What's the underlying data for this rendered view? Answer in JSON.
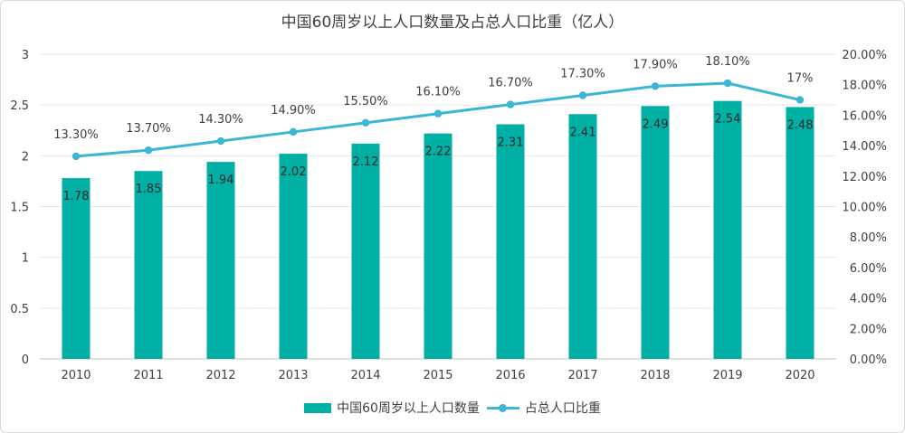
{
  "chart_data": {
    "type": "bar+line",
    "title": "中国60周岁以上人口数量及占总人口比重（亿人）",
    "categories": [
      "2010",
      "2011",
      "2012",
      "2013",
      "2014",
      "2015",
      "2016",
      "2017",
      "2018",
      "2019",
      "2020"
    ],
    "series": [
      {
        "name": "中国60周岁以上人口数量",
        "type": "bar",
        "axis": "left",
        "color": "#00b0a5",
        "values": [
          1.78,
          1.85,
          1.94,
          2.02,
          2.12,
          2.22,
          2.31,
          2.41,
          2.49,
          2.54,
          2.48
        ],
        "labels": [
          "1.78",
          "1.85",
          "1.94",
          "2.02",
          "2.12",
          "2.22",
          "2.31",
          "2.41",
          "2.49",
          "2.54",
          "2.48"
        ]
      },
      {
        "name": "占总人口比重",
        "type": "line",
        "axis": "right",
        "color": "#3bb6d4",
        "values": [
          13.3,
          13.7,
          14.3,
          14.9,
          15.5,
          16.1,
          16.7,
          17.3,
          17.9,
          18.1,
          17.0
        ],
        "labels": [
          "13.30%",
          "13.70%",
          "14.30%",
          "14.90%",
          "15.50%",
          "16.10%",
          "16.70%",
          "17.30%",
          "17.90%",
          "18.10%",
          "17%"
        ]
      }
    ],
    "y_left": {
      "min": 0,
      "max": 3,
      "ticks": [
        "0",
        "0.5",
        "1",
        "1.5",
        "2",
        "2.5",
        "3"
      ]
    },
    "y_right": {
      "min": 0,
      "max": 20,
      "ticks": [
        "0.00%",
        "2.00%",
        "4.00%",
        "6.00%",
        "8.00%",
        "10.00%",
        "12.00%",
        "14.00%",
        "16.00%",
        "18.00%",
        "20.00%"
      ]
    },
    "grid": true,
    "legend_position": "bottom"
  }
}
